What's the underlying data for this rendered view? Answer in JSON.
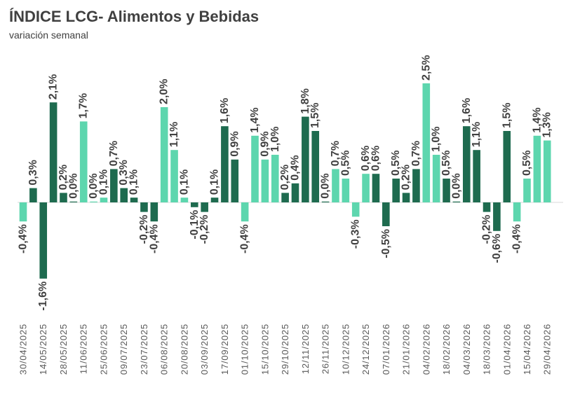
{
  "chart_data": {
    "type": "bar",
    "title": "ÍNDICE LCG- Alimentos y Bebidas",
    "subtitle": "variación semanal",
    "grid": false,
    "categories": [
      "30/04/2025",
      "",
      "14/05/2025",
      "",
      "28/05/2025",
      "",
      "11/06/2025",
      "",
      "25/06/2025",
      "",
      "09/07/2025",
      "",
      "23/07/2025",
      "",
      "06/08/2025",
      "",
      "20/08/2025",
      "",
      "03/09/2025",
      "",
      "17/09/2025",
      "",
      "01/10/2025",
      "",
      "15/10/2025",
      "",
      "29/10/2025",
      "",
      "12/11/2025",
      "",
      "26/11/2025",
      "",
      "10/12/2025",
      "",
      "24/12/2025",
      "",
      "07/01/2026",
      "",
      "21/01/2026",
      "",
      "04/02/2026",
      "",
      "18/02/2026",
      "",
      "04/03/2026",
      "",
      "18/03/2026",
      "",
      "01/04/2026",
      "",
      "15/04/2026",
      "",
      "29/04/2026"
    ],
    "values": [
      -0.4,
      0.3,
      -1.6,
      2.1,
      0.2,
      0.0,
      1.7,
      0.0,
      0.1,
      0.7,
      0.3,
      0.1,
      -0.2,
      -0.4,
      2.0,
      1.1,
      0.1,
      -0.1,
      -0.2,
      0.1,
      1.6,
      0.9,
      -0.4,
      1.4,
      0.9,
      1.0,
      0.2,
      0.4,
      1.8,
      1.5,
      0.0,
      0.7,
      0.5,
      -0.3,
      0.6,
      0.6,
      -0.5,
      0.5,
      0.2,
      0.7,
      2.5,
      1.0,
      0.5,
      0.0,
      1.6,
      1.1,
      -0.2,
      -0.6,
      1.5,
      -0.4,
      0.5,
      1.4,
      1.3
    ],
    "labels": [
      "-0,4%",
      "0,3%",
      "-1,6%",
      "2,1%",
      "0,2%",
      "0,0%",
      "1,7%",
      "0,0%",
      "0,1%",
      "0,7%",
      "0,3%",
      "0,1%",
      "-0,2%",
      "-0,4%",
      "2,0%",
      "1,1%",
      "0,1%",
      "-0,1%",
      "-0,2%",
      "0,1%",
      "1,6%",
      "0,9%",
      "-0,4%",
      "1,4%",
      "0,9%",
      "1,0%",
      "0,2%",
      "0,4%",
      "1,8%",
      "1,5%",
      "0,0%",
      "0,7%",
      "0,5%",
      "-0,3%",
      "0,6%",
      "0,6%",
      "-0,5%",
      "0,5%",
      "0,2%",
      "0,7%",
      "2,5%",
      "1,0%",
      "0,5%",
      "0,0%",
      "1,6%",
      "1,1%",
      "-0,2%",
      "-0,6%",
      "1,5%",
      "-0,4%",
      "0,5%",
      "1,4%",
      "1,3%"
    ],
    "bar_colors": [
      "#5DD6AE",
      "#1E6B4F",
      "#1E6B4F",
      "#1E6B4F",
      "#1E6B4F",
      "#1E6B4F",
      "#5DD6AE",
      "#5DD6AE",
      "#5DD6AE",
      "#1E6B4F",
      "#1E6B4F",
      "#1E6B4F",
      "#1E6B4F",
      "#1E6B4F",
      "#5DD6AE",
      "#5DD6AE",
      "#5DD6AE",
      "#1E6B4F",
      "#1E6B4F",
      "#1E6B4F",
      "#1E6B4F",
      "#1E6B4F",
      "#5DD6AE",
      "#5DD6AE",
      "#5DD6AE",
      "#5DD6AE",
      "#1E6B4F",
      "#1E6B4F",
      "#1E6B4F",
      "#1E6B4F",
      "#1E6B4F",
      "#5DD6AE",
      "#5DD6AE",
      "#5DD6AE",
      "#5DD6AE",
      "#1E6B4F",
      "#1E6B4F",
      "#1E6B4F",
      "#1E6B4F",
      "#1E6B4F",
      "#5DD6AE",
      "#5DD6AE",
      "#1E6B4F",
      "#1E6B4F",
      "#1E6B4F",
      "#1E6B4F",
      "#1E6B4F",
      "#1E6B4F",
      "#1E6B4F",
      "#5DD6AE",
      "#5DD6AE",
      "#5DD6AE",
      "#5DD6AE"
    ],
    "baseline_color": "#D9D9D9"
  }
}
